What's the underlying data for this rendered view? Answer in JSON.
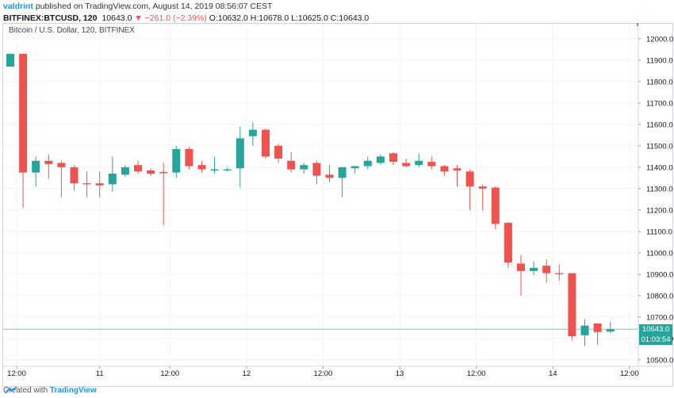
{
  "header": {
    "author": "valdrint",
    "published_text": "published on TradingView.com, August 14, 2019 08:56:07 CEST",
    "symbol": "BITFINEX:BTCUSD, 120",
    "last": "10643.0",
    "change": "▼ −261.0 (−2.39%)",
    "open": "O:10632.0",
    "high": "H:10678.0",
    "low": "L:10625.0",
    "close": "C:10643.0"
  },
  "series_title": "Bitcoin / U.S. Dollar, 120, BITFINEX",
  "price_tag": {
    "value": "10643.0",
    "countdown": "01:03:54"
  },
  "footer": {
    "created_with": "Created with",
    "brand": "TradingView"
  },
  "colors": {
    "up": "#26a69a",
    "down": "#ef5350",
    "grid": "#f0f3fa",
    "price_line": "#26a69a"
  },
  "chart_data": {
    "type": "candlestick",
    "title": "Bitcoin / U.S. Dollar, 120, BITFINEX",
    "y_ticks": [
      12000,
      11900,
      11800,
      11700,
      11600,
      11500,
      11400,
      11300,
      11200,
      11100,
      11000,
      10900,
      10800,
      10700,
      10600,
      10500
    ],
    "ylim": [
      10470,
      12070
    ],
    "x_tick_labels": [
      {
        "label": "12:00",
        "i": 0.5
      },
      {
        "label": "11",
        "i": 7
      },
      {
        "label": "12:00",
        "i": 12.5
      },
      {
        "label": "12",
        "i": 18.5
      },
      {
        "label": "12:00",
        "i": 24.5
      },
      {
        "label": "13",
        "i": 30.5
      },
      {
        "label": "12:00",
        "i": 36.5
      },
      {
        "label": "14",
        "i": 42.5
      },
      {
        "label": "12:00",
        "i": 48.5
      }
    ],
    "last_price": 10643.0,
    "candles": [
      {
        "o": 11870,
        "h": 11930,
        "l": 11870,
        "c": 11930
      },
      {
        "o": 11930,
        "h": 11930,
        "l": 11210,
        "c": 11375
      },
      {
        "o": 11375,
        "h": 11450,
        "l": 11310,
        "c": 11430
      },
      {
        "o": 11430,
        "h": 11460,
        "l": 11345,
        "c": 11415
      },
      {
        "o": 11420,
        "h": 11430,
        "l": 11260,
        "c": 11400
      },
      {
        "o": 11400,
        "h": 11410,
        "l": 11290,
        "c": 11325
      },
      {
        "o": 11325,
        "h": 11380,
        "l": 11260,
        "c": 11320
      },
      {
        "o": 11325,
        "h": 11380,
        "l": 11260,
        "c": 11315
      },
      {
        "o": 11320,
        "h": 11450,
        "l": 11285,
        "c": 11370
      },
      {
        "o": 11365,
        "h": 11410,
        "l": 11355,
        "c": 11400
      },
      {
        "o": 11410,
        "h": 11430,
        "l": 11370,
        "c": 11380
      },
      {
        "o": 11385,
        "h": 11395,
        "l": 11360,
        "c": 11370
      },
      {
        "o": 11378,
        "h": 11420,
        "l": 11130,
        "c": 11372
      },
      {
        "o": 11375,
        "h": 11500,
        "l": 11350,
        "c": 11485
      },
      {
        "o": 11485,
        "h": 11495,
        "l": 11390,
        "c": 11405
      },
      {
        "o": 11410,
        "h": 11430,
        "l": 11375,
        "c": 11390
      },
      {
        "o": 11385,
        "h": 11450,
        "l": 11370,
        "c": 11390
      },
      {
        "o": 11385,
        "h": 11400,
        "l": 11380,
        "c": 11390
      },
      {
        "o": 11395,
        "h": 11590,
        "l": 11305,
        "c": 11535
      },
      {
        "o": 11545,
        "h": 11610,
        "l": 11500,
        "c": 11575
      },
      {
        "o": 11575,
        "h": 11580,
        "l": 11440,
        "c": 11450
      },
      {
        "o": 11500,
        "h": 11510,
        "l": 11420,
        "c": 11440
      },
      {
        "o": 11430,
        "h": 11470,
        "l": 11375,
        "c": 11390
      },
      {
        "o": 11390,
        "h": 11420,
        "l": 11370,
        "c": 11410
      },
      {
        "o": 11420,
        "h": 11430,
        "l": 11320,
        "c": 11360
      },
      {
        "o": 11365,
        "h": 11410,
        "l": 11330,
        "c": 11350
      },
      {
        "o": 11350,
        "h": 11400,
        "l": 11260,
        "c": 11400
      },
      {
        "o": 11395,
        "h": 11405,
        "l": 11370,
        "c": 11405
      },
      {
        "o": 11405,
        "h": 11450,
        "l": 11390,
        "c": 11430
      },
      {
        "o": 11420,
        "h": 11460,
        "l": 11410,
        "c": 11450
      },
      {
        "o": 11465,
        "h": 11470,
        "l": 11410,
        "c": 11425
      },
      {
        "o": 11420,
        "h": 11440,
        "l": 11400,
        "c": 11405
      },
      {
        "o": 11410,
        "h": 11465,
        "l": 11400,
        "c": 11430
      },
      {
        "o": 11425,
        "h": 11450,
        "l": 11390,
        "c": 11405
      },
      {
        "o": 11405,
        "h": 11410,
        "l": 11360,
        "c": 11380
      },
      {
        "o": 11395,
        "h": 11410,
        "l": 11310,
        "c": 11385
      },
      {
        "o": 11380,
        "h": 11390,
        "l": 11200,
        "c": 11310
      },
      {
        "o": 11310,
        "h": 11320,
        "l": 11200,
        "c": 11300
      },
      {
        "o": 11305,
        "h": 11310,
        "l": 11110,
        "c": 11135
      },
      {
        "o": 11140,
        "h": 11145,
        "l": 10930,
        "c": 10955
      },
      {
        "o": 10950,
        "h": 10990,
        "l": 10800,
        "c": 10915
      },
      {
        "o": 10915,
        "h": 10960,
        "l": 10895,
        "c": 10930
      },
      {
        "o": 10940,
        "h": 10970,
        "l": 10860,
        "c": 10905
      },
      {
        "o": 10905,
        "h": 10945,
        "l": 10870,
        "c": 10900
      },
      {
        "o": 10905,
        "h": 10905,
        "l": 10590,
        "c": 10610
      },
      {
        "o": 10615,
        "h": 10690,
        "l": 10565,
        "c": 10660
      },
      {
        "o": 10670,
        "h": 10670,
        "l": 10570,
        "c": 10630
      },
      {
        "o": 10632,
        "h": 10678,
        "l": 10625,
        "c": 10643
      }
    ]
  }
}
